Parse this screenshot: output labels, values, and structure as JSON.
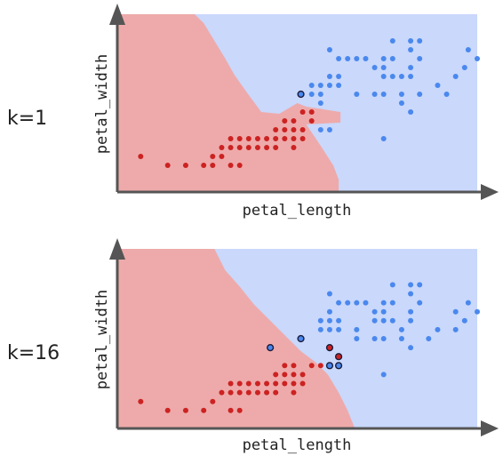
{
  "colors": {
    "region_class_0": "#eeaaaa",
    "region_class_1": "#c9d8fb",
    "point_class_0": "#cc2222",
    "point_class_1": "#4a88ee",
    "axis": "#555555",
    "misclassified_ring": "#1a1a3a"
  },
  "chart_data": [
    {
      "type": "scatter",
      "panel_label": "k=1",
      "xlabel": "petal_length",
      "ylabel": "petal_width",
      "grid": false,
      "legend": "none",
      "xlim": [
        0,
        20
      ],
      "ylim": [
        0,
        10
      ],
      "boundary": [
        [
          4.3,
          10
        ],
        [
          4.8,
          9.5
        ],
        [
          5.4,
          8.5
        ],
        [
          6.0,
          7.5
        ],
        [
          6.5,
          6.6
        ],
        [
          7.2,
          5.6
        ],
        [
          8.0,
          4.5
        ],
        [
          9.0,
          4.4
        ],
        [
          10.0,
          5.0
        ],
        [
          10.5,
          4.8
        ],
        [
          12.4,
          4.5
        ],
        [
          12.4,
          3.9
        ],
        [
          10.5,
          3.8
        ],
        [
          11.3,
          2.6
        ],
        [
          12.0,
          1.5
        ],
        [
          12.3,
          0.7
        ],
        [
          12.3,
          0
        ]
      ],
      "points": [
        {
          "x": 1.3,
          "y": 2.0,
          "c": 0
        },
        {
          "x": 2.8,
          "y": 1.5,
          "c": 0
        },
        {
          "x": 3.8,
          "y": 1.5,
          "c": 0
        },
        {
          "x": 4.8,
          "y": 1.5,
          "c": 0
        },
        {
          "x": 5.3,
          "y": 1.5,
          "c": 0
        },
        {
          "x": 5.3,
          "y": 2.0,
          "c": 0
        },
        {
          "x": 5.8,
          "y": 2.0,
          "c": 0
        },
        {
          "x": 5.8,
          "y": 2.5,
          "c": 0
        },
        {
          "x": 6.3,
          "y": 1.5,
          "c": 0
        },
        {
          "x": 6.3,
          "y": 2.5,
          "c": 0
        },
        {
          "x": 6.3,
          "y": 3.0,
          "c": 0
        },
        {
          "x": 6.8,
          "y": 1.5,
          "c": 0
        },
        {
          "x": 6.8,
          "y": 2.5,
          "c": 0
        },
        {
          "x": 6.8,
          "y": 3.0,
          "c": 0
        },
        {
          "x": 7.3,
          "y": 2.5,
          "c": 0
        },
        {
          "x": 7.3,
          "y": 3.0,
          "c": 0
        },
        {
          "x": 7.8,
          "y": 2.5,
          "c": 0
        },
        {
          "x": 7.8,
          "y": 3.0,
          "c": 0
        },
        {
          "x": 8.3,
          "y": 2.5,
          "c": 0
        },
        {
          "x": 8.3,
          "y": 3.0,
          "c": 0
        },
        {
          "x": 8.8,
          "y": 2.5,
          "c": 0
        },
        {
          "x": 8.8,
          "y": 3.0,
          "c": 0
        },
        {
          "x": 8.8,
          "y": 3.5,
          "c": 0
        },
        {
          "x": 9.3,
          "y": 3.0,
          "c": 0
        },
        {
          "x": 9.3,
          "y": 3.5,
          "c": 0
        },
        {
          "x": 9.3,
          "y": 4.0,
          "c": 0
        },
        {
          "x": 9.8,
          "y": 2.5,
          "c": 0
        },
        {
          "x": 9.8,
          "y": 3.0,
          "c": 0
        },
        {
          "x": 9.8,
          "y": 3.5,
          "c": 0
        },
        {
          "x": 9.8,
          "y": 4.0,
          "c": 0
        },
        {
          "x": 10.3,
          "y": 3.0,
          "c": 0
        },
        {
          "x": 10.3,
          "y": 3.5,
          "c": 0
        },
        {
          "x": 10.3,
          "y": 4.5,
          "c": 0
        },
        {
          "x": 10.8,
          "y": 4.0,
          "c": 0
        },
        {
          "x": 10.8,
          "y": 4.5,
          "c": 0
        },
        {
          "x": 10.2,
          "y": 5.5,
          "c": 1,
          "mis": true
        },
        {
          "x": 11.3,
          "y": 3.5,
          "c": 1
        },
        {
          "x": 11.8,
          "y": 3.5,
          "c": 1
        },
        {
          "x": 10.8,
          "y": 5.5,
          "c": 1
        },
        {
          "x": 10.8,
          "y": 6.0,
          "c": 1
        },
        {
          "x": 11.3,
          "y": 5.0,
          "c": 1
        },
        {
          "x": 11.3,
          "y": 5.5,
          "c": 1
        },
        {
          "x": 11.3,
          "y": 6.0,
          "c": 1
        },
        {
          "x": 11.8,
          "y": 6.0,
          "c": 1
        },
        {
          "x": 11.8,
          "y": 6.5,
          "c": 1
        },
        {
          "x": 11.8,
          "y": 8.0,
          "c": 1
        },
        {
          "x": 12.3,
          "y": 6.0,
          "c": 1
        },
        {
          "x": 12.3,
          "y": 6.5,
          "c": 1
        },
        {
          "x": 12.3,
          "y": 7.5,
          "c": 1
        },
        {
          "x": 12.8,
          "y": 7.5,
          "c": 1
        },
        {
          "x": 13.3,
          "y": 7.5,
          "c": 1
        },
        {
          "x": 13.8,
          "y": 7.5,
          "c": 1
        },
        {
          "x": 13.3,
          "y": 5.5,
          "c": 1
        },
        {
          "x": 14.3,
          "y": 7.0,
          "c": 1
        },
        {
          "x": 14.3,
          "y": 5.5,
          "c": 1
        },
        {
          "x": 14.8,
          "y": 5.5,
          "c": 1
        },
        {
          "x": 14.8,
          "y": 6.5,
          "c": 1
        },
        {
          "x": 14.8,
          "y": 7.0,
          "c": 1
        },
        {
          "x": 14.8,
          "y": 7.5,
          "c": 1
        },
        {
          "x": 14.8,
          "y": 3.0,
          "c": 1
        },
        {
          "x": 15.3,
          "y": 6.5,
          "c": 1
        },
        {
          "x": 15.3,
          "y": 7.5,
          "c": 1
        },
        {
          "x": 15.3,
          "y": 8.5,
          "c": 1
        },
        {
          "x": 15.8,
          "y": 5.0,
          "c": 1
        },
        {
          "x": 15.8,
          "y": 5.5,
          "c": 1
        },
        {
          "x": 15.8,
          "y": 6.5,
          "c": 1
        },
        {
          "x": 16.3,
          "y": 6.5,
          "c": 1
        },
        {
          "x": 16.3,
          "y": 7.0,
          "c": 1
        },
        {
          "x": 16.3,
          "y": 8.0,
          "c": 1
        },
        {
          "x": 16.3,
          "y": 8.5,
          "c": 1
        },
        {
          "x": 16.3,
          "y": 4.5,
          "c": 1
        },
        {
          "x": 16.8,
          "y": 8.5,
          "c": 1
        },
        {
          "x": 16.8,
          "y": 7.5,
          "c": 1
        },
        {
          "x": 16.8,
          "y": 5.5,
          "c": 1
        },
        {
          "x": 17.8,
          "y": 6.0,
          "c": 1
        },
        {
          "x": 18.8,
          "y": 6.5,
          "c": 1
        },
        {
          "x": 19.3,
          "y": 7.0,
          "c": 1
        },
        {
          "x": 18.3,
          "y": 5.5,
          "c": 1
        },
        {
          "x": 20.0,
          "y": 7.5,
          "c": 1
        },
        {
          "x": 19.5,
          "y": 8.0,
          "c": 1
        }
      ]
    },
    {
      "type": "scatter",
      "panel_label": "k=16",
      "xlabel": "petal_length",
      "ylabel": "petal_width",
      "grid": false,
      "legend": "none",
      "xlim": [
        0,
        20
      ],
      "ylim": [
        0,
        10
      ],
      "boundary": [
        [
          5.4,
          10
        ],
        [
          6.0,
          8.8
        ],
        [
          6.8,
          7.9
        ],
        [
          7.6,
          6.9
        ],
        [
          8.5,
          6.0
        ],
        [
          9.4,
          5.1
        ],
        [
          10.2,
          4.3
        ],
        [
          11.0,
          3.7
        ],
        [
          11.7,
          3.0
        ],
        [
          12.3,
          2.0
        ],
        [
          12.8,
          1.0
        ],
        [
          13.2,
          0
        ]
      ],
      "points": [
        {
          "x": 1.3,
          "y": 1.5,
          "c": 0
        },
        {
          "x": 2.8,
          "y": 1.0,
          "c": 0
        },
        {
          "x": 3.8,
          "y": 1.0,
          "c": 0
        },
        {
          "x": 4.8,
          "y": 1.0,
          "c": 0
        },
        {
          "x": 5.3,
          "y": 1.5,
          "c": 0
        },
        {
          "x": 5.8,
          "y": 2.0,
          "c": 0
        },
        {
          "x": 6.3,
          "y": 1.0,
          "c": 0
        },
        {
          "x": 6.3,
          "y": 2.0,
          "c": 0
        },
        {
          "x": 6.3,
          "y": 2.5,
          "c": 0
        },
        {
          "x": 6.8,
          "y": 1.0,
          "c": 0
        },
        {
          "x": 6.8,
          "y": 2.0,
          "c": 0
        },
        {
          "x": 6.8,
          "y": 2.5,
          "c": 0
        },
        {
          "x": 7.3,
          "y": 2.0,
          "c": 0
        },
        {
          "x": 7.3,
          "y": 2.5,
          "c": 0
        },
        {
          "x": 7.8,
          "y": 2.0,
          "c": 0
        },
        {
          "x": 7.8,
          "y": 2.5,
          "c": 0
        },
        {
          "x": 8.3,
          "y": 2.0,
          "c": 0
        },
        {
          "x": 8.3,
          "y": 2.5,
          "c": 0
        },
        {
          "x": 8.8,
          "y": 2.0,
          "c": 0
        },
        {
          "x": 8.8,
          "y": 2.5,
          "c": 0
        },
        {
          "x": 8.8,
          "y": 3.0,
          "c": 0
        },
        {
          "x": 9.3,
          "y": 2.5,
          "c": 0
        },
        {
          "x": 9.3,
          "y": 3.0,
          "c": 0
        },
        {
          "x": 9.3,
          "y": 3.5,
          "c": 0
        },
        {
          "x": 9.8,
          "y": 2.0,
          "c": 0
        },
        {
          "x": 9.8,
          "y": 2.5,
          "c": 0
        },
        {
          "x": 9.8,
          "y": 3.0,
          "c": 0
        },
        {
          "x": 9.8,
          "y": 3.5,
          "c": 0
        },
        {
          "x": 10.3,
          "y": 2.5,
          "c": 0
        },
        {
          "x": 10.3,
          "y": 3.0,
          "c": 0
        },
        {
          "x": 10.8,
          "y": 3.5,
          "c": 0
        },
        {
          "x": 11.3,
          "y": 3.5,
          "c": 0
        },
        {
          "x": 8.5,
          "y": 4.5,
          "c": 1,
          "mis": true
        },
        {
          "x": 10.2,
          "y": 5.0,
          "c": 1,
          "mis": true
        },
        {
          "x": 11.8,
          "y": 3.5,
          "c": 1,
          "mis": true
        },
        {
          "x": 12.3,
          "y": 3.5,
          "c": 1,
          "mis": true
        },
        {
          "x": 11.8,
          "y": 4.5,
          "c": 0,
          "mis": true
        },
        {
          "x": 12.3,
          "y": 4.0,
          "c": 0,
          "mis": true
        },
        {
          "x": 11.3,
          "y": 5.5,
          "c": 1
        },
        {
          "x": 11.3,
          "y": 6.0,
          "c": 1
        },
        {
          "x": 11.8,
          "y": 5.5,
          "c": 1
        },
        {
          "x": 11.8,
          "y": 6.0,
          "c": 1
        },
        {
          "x": 11.8,
          "y": 6.5,
          "c": 1
        },
        {
          "x": 11.8,
          "y": 7.5,
          "c": 1
        },
        {
          "x": 12.3,
          "y": 5.5,
          "c": 1
        },
        {
          "x": 12.3,
          "y": 6.0,
          "c": 1
        },
        {
          "x": 12.3,
          "y": 7.0,
          "c": 1
        },
        {
          "x": 12.8,
          "y": 7.0,
          "c": 1
        },
        {
          "x": 13.3,
          "y": 7.0,
          "c": 1
        },
        {
          "x": 13.3,
          "y": 5.0,
          "c": 1
        },
        {
          "x": 13.3,
          "y": 5.5,
          "c": 1
        },
        {
          "x": 13.8,
          "y": 7.0,
          "c": 1
        },
        {
          "x": 14.3,
          "y": 6.0,
          "c": 1
        },
        {
          "x": 14.3,
          "y": 6.5,
          "c": 1
        },
        {
          "x": 14.3,
          "y": 5.0,
          "c": 1
        },
        {
          "x": 14.8,
          "y": 5.0,
          "c": 1
        },
        {
          "x": 14.8,
          "y": 6.0,
          "c": 1
        },
        {
          "x": 14.8,
          "y": 6.5,
          "c": 1
        },
        {
          "x": 14.8,
          "y": 7.0,
          "c": 1
        },
        {
          "x": 14.8,
          "y": 3.0,
          "c": 1
        },
        {
          "x": 15.3,
          "y": 6.0,
          "c": 1
        },
        {
          "x": 15.3,
          "y": 7.0,
          "c": 1
        },
        {
          "x": 15.3,
          "y": 8.0,
          "c": 1
        },
        {
          "x": 15.8,
          "y": 5.0,
          "c": 1
        },
        {
          "x": 15.8,
          "y": 5.5,
          "c": 1
        },
        {
          "x": 16.3,
          "y": 6.0,
          "c": 1
        },
        {
          "x": 16.3,
          "y": 6.5,
          "c": 1
        },
        {
          "x": 16.3,
          "y": 7.5,
          "c": 1
        },
        {
          "x": 16.3,
          "y": 8.0,
          "c": 1
        },
        {
          "x": 16.3,
          "y": 4.5,
          "c": 1
        },
        {
          "x": 16.8,
          "y": 8.0,
          "c": 1
        },
        {
          "x": 16.8,
          "y": 7.0,
          "c": 1
        },
        {
          "x": 17.3,
          "y": 5.0,
          "c": 1
        },
        {
          "x": 17.8,
          "y": 5.5,
          "c": 1
        },
        {
          "x": 18.8,
          "y": 5.5,
          "c": 1
        },
        {
          "x": 19.3,
          "y": 6.0,
          "c": 1
        },
        {
          "x": 18.8,
          "y": 6.5,
          "c": 1
        },
        {
          "x": 20.0,
          "y": 6.5,
          "c": 1
        },
        {
          "x": 19.5,
          "y": 7.0,
          "c": 1
        }
      ]
    }
  ]
}
